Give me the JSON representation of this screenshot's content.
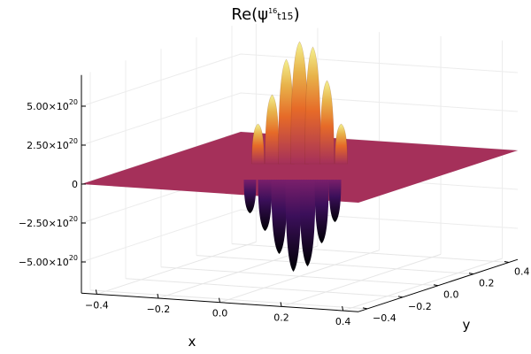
{
  "chart_data": {
    "type": "surface",
    "title": {
      "base": "Re(ψ",
      "sup": "16",
      "sub": "t15",
      "close": ")"
    },
    "xlabel": "x",
    "ylabel": "y",
    "x_ticks": [
      "-0.4",
      "-0.2",
      "0.0",
      "0.2",
      "0.4"
    ],
    "y_ticks": [
      "-0.4",
      "-0.2",
      "0.0",
      "0.2",
      "0.4"
    ],
    "z_ticks": [
      {
        "value": 5e+20,
        "mantissa": "5.00×10",
        "exp": "20"
      },
      {
        "value": 2.5e+20,
        "mantissa": "2.50×10",
        "exp": "20"
      },
      {
        "value": 0,
        "mantissa": "0",
        "exp": ""
      },
      {
        "value": -2.5e+20,
        "mantissa": "−2.50×10",
        "exp": "20"
      },
      {
        "value": -5e+20,
        "mantissa": "−5.00×10",
        "exp": "20"
      }
    ],
    "xlim": [
      -0.45,
      0.45
    ],
    "ylim": [
      -0.45,
      0.45
    ],
    "zlim": [
      -7e+20,
      7e+20
    ],
    "grid": true,
    "colormap": "inferno",
    "colors": {
      "plane": "#a5305a",
      "peak": "#f4f18f",
      "trough": "#000004"
    }
  }
}
